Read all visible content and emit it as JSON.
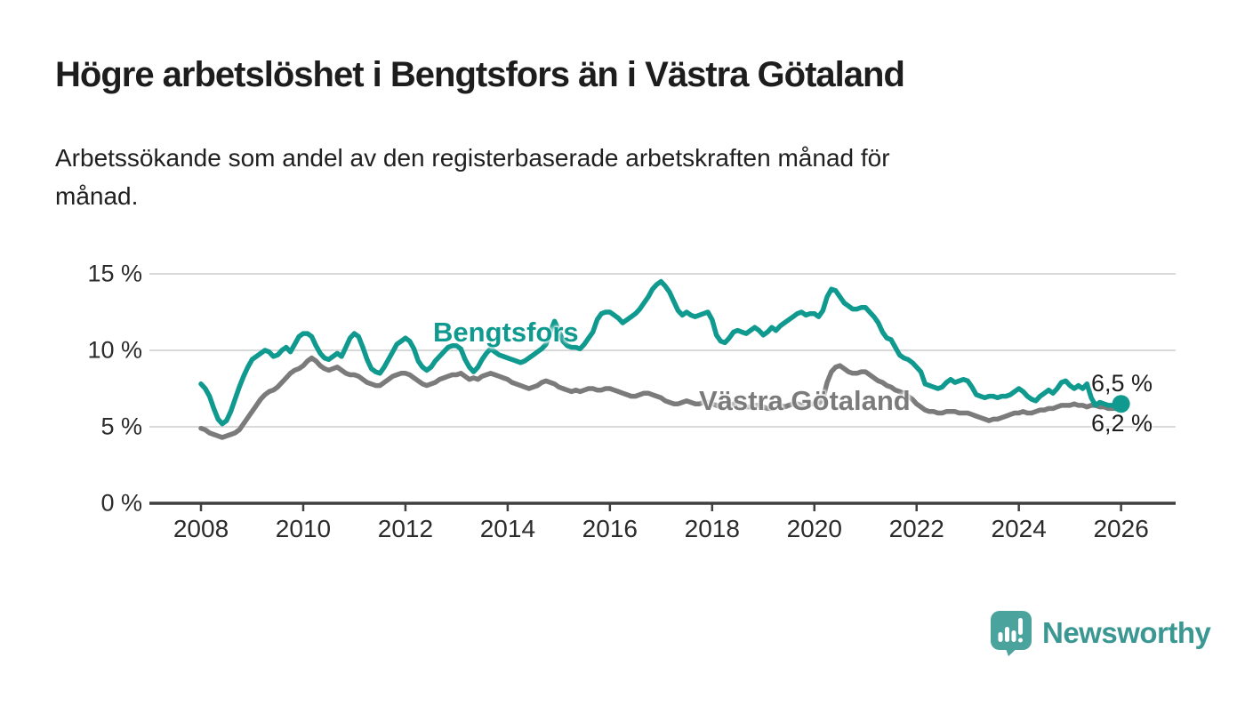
{
  "page": {
    "title": "Högre arbetslöshet i Bengtsfors än i Västra Götaland",
    "subtitle_line1": "Arbetssökande som andel av den registerbaserade arbetskraften månad för",
    "subtitle_line2": "månad."
  },
  "chart_data": {
    "type": "line",
    "title": "Högre arbetslöshet i Bengtsfors än i Västra Götaland",
    "subtitle": "Arbetssökande som andel av den registerbaserade arbetskraften månad för månad.",
    "unit": "%",
    "frequency": "monthly",
    "x_start": "2008-01",
    "x_end": "2026-01",
    "ylim": [
      0,
      15.5
    ],
    "grid": "horizontal",
    "legend_position": "inline-labels",
    "y_ticks": [
      {
        "label": "0 %",
        "value": 0
      },
      {
        "label": "5 %",
        "value": 5
      },
      {
        "label": "10 %",
        "value": 10
      },
      {
        "label": "15 %",
        "value": 15
      }
    ],
    "x_ticks": [
      "2008",
      "2010",
      "2012",
      "2014",
      "2016",
      "2018",
      "2020",
      "2022",
      "2024",
      "2026"
    ],
    "colors": {
      "bengtsfors": "#109a8f",
      "vastra_gotaland": "#7b7b7b",
      "grid": "#d9d9d9",
      "axis": "#3f3f3f"
    },
    "series": [
      {
        "name": "Bengtsfors",
        "color": "#109a8f",
        "end_label": "6,5 %",
        "end_value": 6.5,
        "values": [
          7.8,
          7.5,
          7.0,
          6.2,
          5.5,
          5.2,
          5.4,
          6.0,
          6.8,
          7.6,
          8.3,
          8.9,
          9.4,
          9.6,
          9.8,
          10.0,
          9.9,
          9.6,
          9.7,
          10.0,
          10.2,
          9.9,
          10.4,
          10.9,
          11.1,
          11.1,
          10.9,
          10.3,
          9.8,
          9.5,
          9.4,
          9.6,
          9.8,
          9.6,
          10.2,
          10.8,
          11.1,
          10.9,
          10.2,
          9.4,
          8.8,
          8.6,
          8.5,
          8.9,
          9.4,
          9.9,
          10.4,
          10.6,
          10.8,
          10.6,
          10.1,
          9.3,
          8.9,
          8.7,
          8.9,
          9.3,
          9.6,
          9.9,
          10.2,
          10.3,
          10.3,
          10.1,
          9.4,
          8.9,
          8.6,
          8.9,
          9.4,
          9.8,
          10.1,
          9.9,
          9.7,
          9.6,
          9.5,
          9.4,
          9.3,
          9.2,
          9.3,
          9.5,
          9.7,
          9.9,
          10.1,
          10.4,
          11.2,
          11.9,
          11.3,
          10.6,
          10.3,
          10.2,
          10.2,
          10.1,
          10.4,
          10.8,
          11.2,
          12.0,
          12.4,
          12.5,
          12.5,
          12.3,
          12.1,
          11.8,
          12.0,
          12.2,
          12.4,
          12.7,
          13.1,
          13.5,
          14.0,
          14.3,
          14.5,
          14.2,
          13.8,
          13.2,
          12.6,
          12.3,
          12.5,
          12.3,
          12.2,
          12.3,
          12.4,
          12.5,
          12.0,
          11.0,
          10.6,
          10.5,
          10.8,
          11.2,
          11.3,
          11.2,
          11.1,
          11.3,
          11.5,
          11.3,
          11.0,
          11.2,
          11.5,
          11.3,
          11.6,
          11.8,
          12.0,
          12.2,
          12.4,
          12.5,
          12.3,
          12.4,
          12.4,
          12.2,
          12.6,
          13.5,
          14.0,
          13.9,
          13.5,
          13.1,
          12.9,
          12.7,
          12.7,
          12.8,
          12.8,
          12.5,
          12.2,
          11.8,
          11.2,
          10.8,
          10.7,
          10.2,
          9.7,
          9.5,
          9.4,
          9.2,
          8.9,
          8.6,
          7.8,
          7.7,
          7.6,
          7.5,
          7.6,
          7.9,
          8.1,
          7.9,
          8.0,
          8.1,
          8.0,
          7.6,
          7.1,
          7.0,
          6.9,
          7.0,
          7.0,
          6.9,
          7.0,
          7.0,
          7.1,
          7.3,
          7.5,
          7.3,
          7.0,
          6.8,
          6.7,
          7.0,
          7.2,
          7.4,
          7.2,
          7.5,
          7.9,
          8.0,
          7.7,
          7.5,
          7.7,
          7.5,
          7.8,
          6.9,
          6.4,
          6.6,
          6.5,
          6.4,
          6.4,
          6.5,
          6.5
        ]
      },
      {
        "name": "Västra Götaland",
        "color": "#7b7b7b",
        "end_label": "6,2 %",
        "end_value": 6.2,
        "values": [
          4.9,
          4.8,
          4.6,
          4.5,
          4.4,
          4.3,
          4.4,
          4.5,
          4.6,
          4.8,
          5.2,
          5.6,
          6.0,
          6.4,
          6.8,
          7.1,
          7.3,
          7.4,
          7.6,
          7.9,
          8.2,
          8.5,
          8.7,
          8.8,
          9.0,
          9.3,
          9.5,
          9.3,
          9.0,
          8.8,
          8.7,
          8.8,
          8.9,
          8.7,
          8.5,
          8.4,
          8.4,
          8.3,
          8.1,
          7.9,
          7.8,
          7.7,
          7.7,
          7.9,
          8.1,
          8.3,
          8.4,
          8.5,
          8.5,
          8.4,
          8.2,
          8.0,
          7.8,
          7.7,
          7.8,
          7.9,
          8.1,
          8.2,
          8.3,
          8.4,
          8.4,
          8.5,
          8.3,
          8.1,
          8.2,
          8.1,
          8.3,
          8.4,
          8.5,
          8.4,
          8.3,
          8.2,
          8.1,
          7.9,
          7.8,
          7.7,
          7.6,
          7.5,
          7.6,
          7.7,
          7.9,
          8.0,
          7.9,
          7.8,
          7.6,
          7.5,
          7.4,
          7.3,
          7.4,
          7.3,
          7.4,
          7.5,
          7.5,
          7.4,
          7.4,
          7.5,
          7.5,
          7.4,
          7.3,
          7.2,
          7.1,
          7.0,
          7.0,
          7.1,
          7.2,
          7.2,
          7.1,
          7.0,
          6.9,
          6.7,
          6.6,
          6.5,
          6.5,
          6.6,
          6.7,
          6.6,
          6.5,
          6.5,
          6.6,
          6.6,
          6.5,
          6.4,
          6.3,
          6.3,
          6.4,
          6.5,
          6.5,
          6.4,
          6.3,
          6.3,
          6.4,
          6.4,
          6.3,
          6.2,
          6.2,
          6.3,
          6.4,
          6.3,
          6.4,
          6.5,
          6.5,
          6.4,
          6.4,
          6.5,
          6.5,
          6.5,
          6.8,
          7.9,
          8.6,
          8.9,
          9.0,
          8.8,
          8.6,
          8.5,
          8.5,
          8.6,
          8.6,
          8.4,
          8.2,
          8.0,
          7.9,
          7.7,
          7.6,
          7.4,
          7.3,
          7.2,
          7.0,
          6.8,
          6.5,
          6.3,
          6.1,
          6.0,
          6.0,
          5.9,
          5.9,
          6.0,
          6.0,
          6.0,
          5.9,
          5.9,
          5.9,
          5.8,
          5.7,
          5.6,
          5.5,
          5.4,
          5.5,
          5.5,
          5.6,
          5.7,
          5.8,
          5.9,
          5.9,
          6.0,
          5.9,
          5.9,
          6.0,
          6.1,
          6.1,
          6.2,
          6.2,
          6.3,
          6.4,
          6.4,
          6.4,
          6.5,
          6.4,
          6.4,
          6.3,
          6.4,
          6.4,
          6.3,
          6.3,
          6.2,
          6.2,
          6.2,
          6.2
        ]
      }
    ]
  },
  "branding": {
    "logo_text": "Newsworthy",
    "logo_icon": "newsworthy-speech-bubble-chart-icon",
    "brand_color": "#3a9792",
    "logo_fill": "#4ba39e"
  }
}
